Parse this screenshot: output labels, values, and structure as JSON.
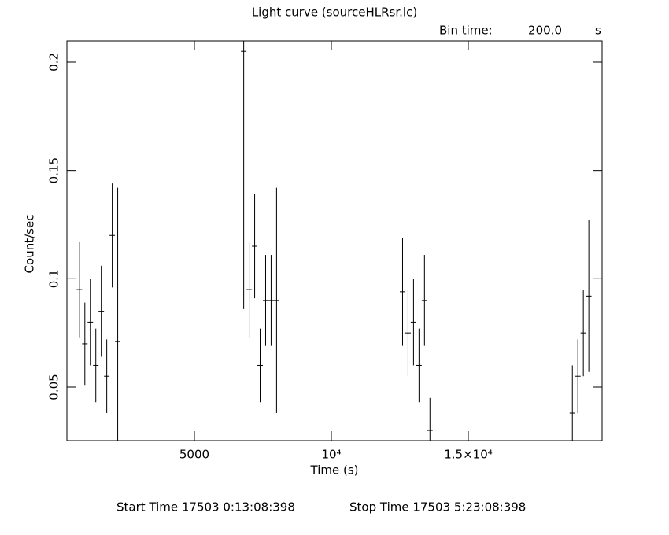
{
  "chart_data": {
    "type": "errorbar",
    "title": "Light curve (sourceHLRsr.lc)",
    "bin_time_label": "Bin time:",
    "bin_time": "200.0",
    "bin_time_unit": "s",
    "x_label": "Time (s)",
    "y_label": "Count/sec",
    "start_time": "Start Time 17503  0:13:08:398",
    "stop_time": "Stop Time 17503  5:23:08:398",
    "color": "#000000",
    "xerr": 100,
    "x": [
      800,
      1000,
      1200,
      1400,
      1600,
      1800,
      2000,
      2200,
      6800,
      7000,
      7200,
      7400,
      7600,
      7800,
      8000,
      12600,
      12800,
      13000,
      13200,
      13400,
      13600,
      18800,
      19000,
      19200,
      19400
    ],
    "y": [
      0.095,
      0.07,
      0.08,
      0.06,
      0.085,
      0.055,
      0.12,
      0.071,
      0.205,
      0.095,
      0.115,
      0.06,
      0.09,
      0.09,
      0.09,
      0.094,
      0.075,
      0.08,
      0.06,
      0.09,
      0.03,
      0.038,
      0.055,
      0.075,
      0.092
    ],
    "yerr": [
      0.022,
      0.019,
      0.02,
      0.017,
      0.021,
      0.017,
      0.024,
      0.071,
      0.119,
      0.022,
      0.024,
      0.017,
      0.021,
      0.021,
      0.052,
      0.025,
      0.02,
      0.02,
      0.017,
      0.021,
      0.015,
      0.022,
      0.017,
      0.02,
      0.035
    ],
    "xlim": [
      345,
      19885
    ],
    "ylim": [
      0.0253,
      0.2098
    ],
    "xticks": [
      5000,
      {
        "value": 10000,
        "label": "10⁴"
      },
      {
        "value": 15000,
        "label": "1.5×10⁴"
      }
    ],
    "yticks": [
      0.05,
      0.1,
      0.15,
      0.2
    ]
  }
}
